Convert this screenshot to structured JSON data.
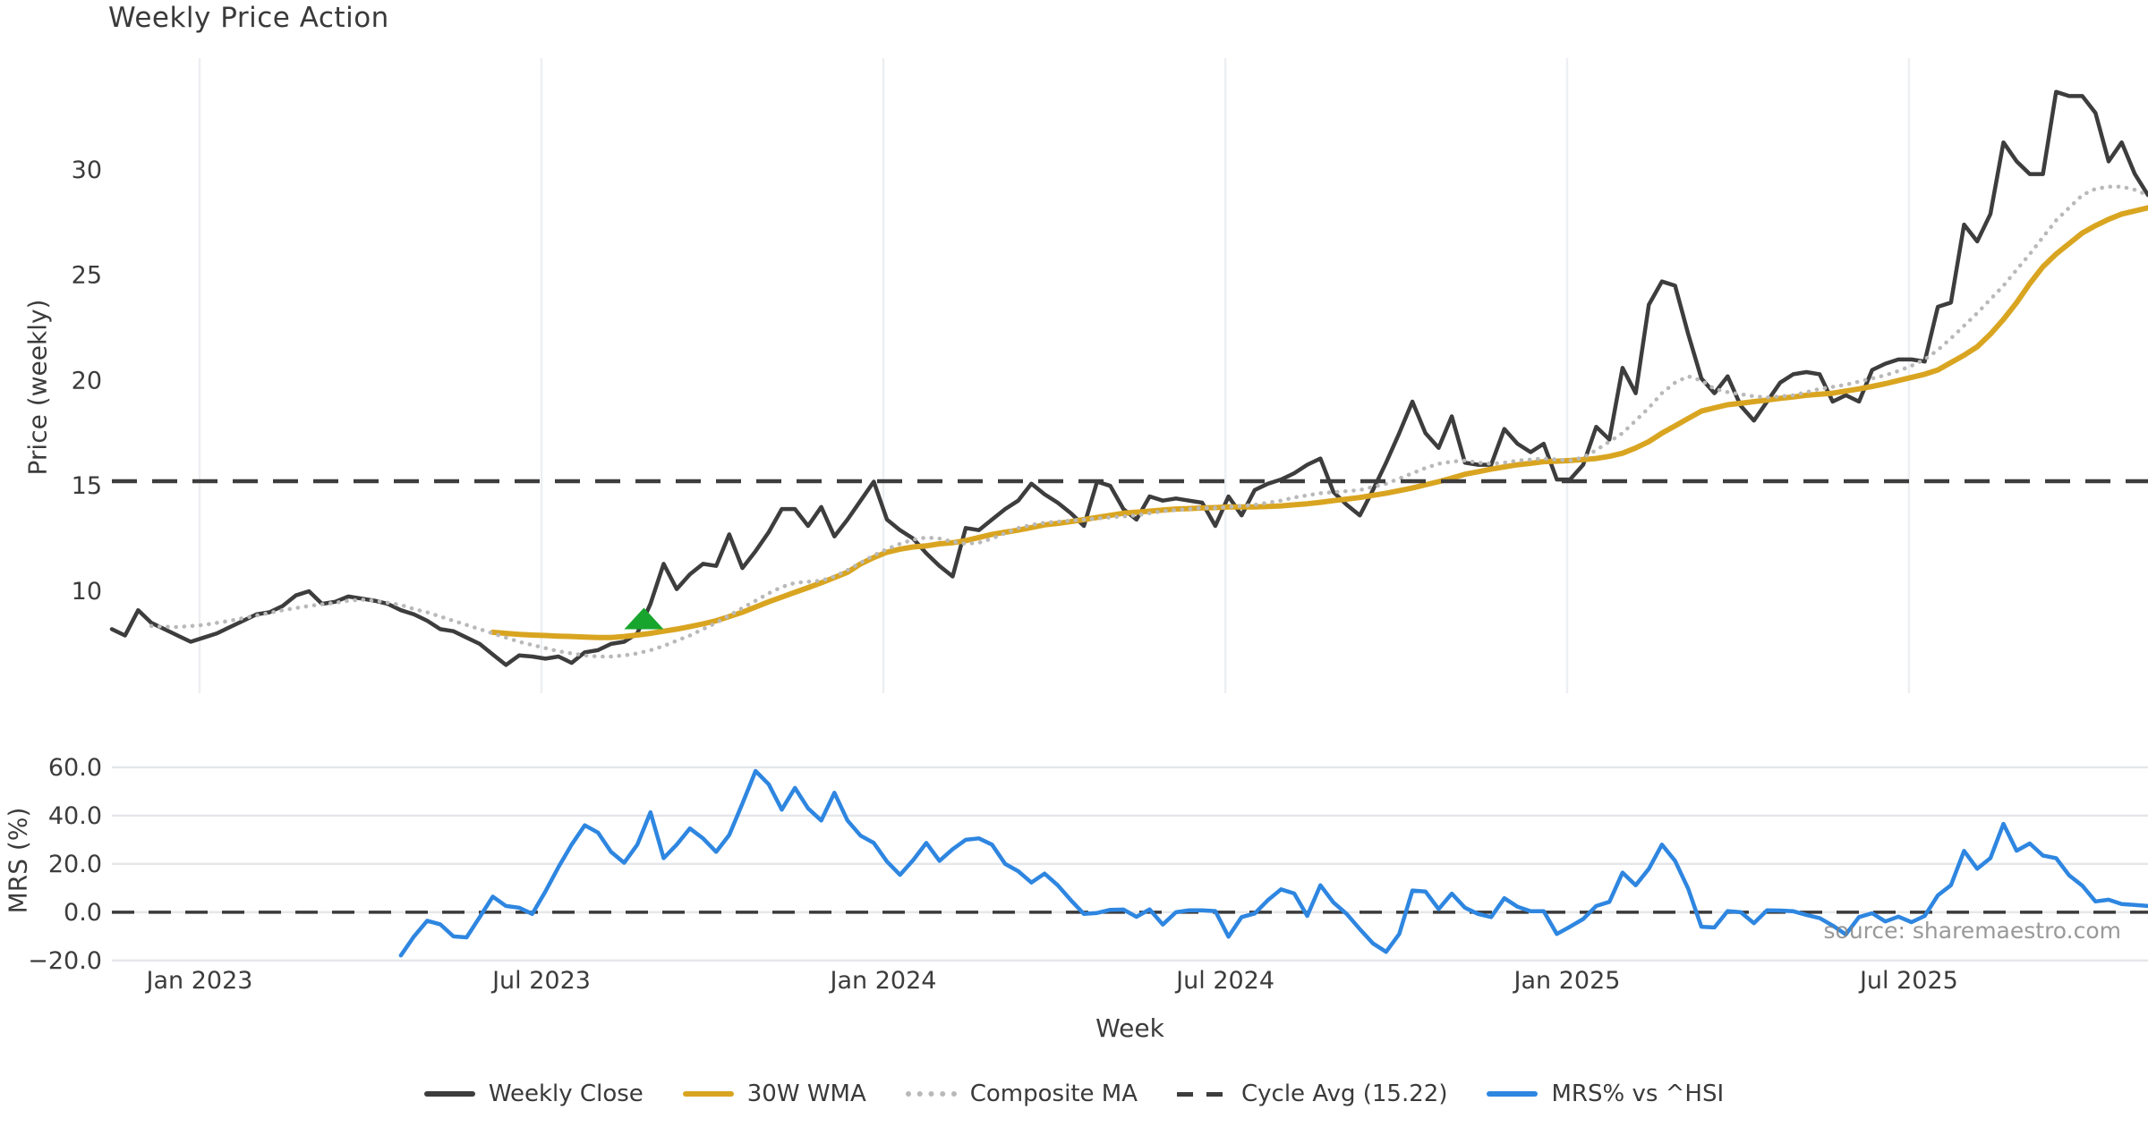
{
  "title": "Weekly Price Action",
  "source_note": "source: sharemaestro.com",
  "chart_data": {
    "type": "line",
    "title": "Weekly Price Action",
    "x_axis": {
      "label": "Week",
      "weeks_total": 155,
      "ticks": [
        {
          "label": "Jan 2023",
          "week": 6.68
        },
        {
          "label": "Jul 2023",
          "week": 32.7
        },
        {
          "label": "Jan 2024",
          "week": 58.73
        },
        {
          "label": "Jul 2024",
          "week": 84.76
        },
        {
          "label": "Jan 2025",
          "week": 110.78
        },
        {
          "label": "Jul 2025",
          "week": 136.8
        }
      ]
    },
    "price_panel": {
      "ylabel": "Price (weekly)",
      "yticks": [
        10,
        15,
        20,
        25,
        30
      ],
      "ylim": [
        5.16,
        35.3
      ],
      "grid": "vertical"
    },
    "mrs_panel": {
      "ylabel": "MRS (%)",
      "yticks": [
        -20,
        0,
        20,
        40,
        60
      ],
      "ytick_labels": [
        "−20.0",
        "0.0",
        "20.0",
        "40.0",
        "60.0"
      ],
      "ylim": [
        -23,
        65.9
      ],
      "zero_line": 0,
      "grid": "horizontal"
    },
    "cycle_avg": 15.22,
    "buy_marker": {
      "week": 40.5,
      "price": 8.62,
      "color": "#18a52d",
      "shape": "triangle-up"
    },
    "series": [
      {
        "id": "weekly_close",
        "name": "Weekly Close",
        "color": "#3d3d3d",
        "style": "solid",
        "panel": "price",
        "start_week": 0,
        "values": [
          8.2,
          7.9,
          9.1,
          8.5,
          8.2,
          7.9,
          7.6,
          7.8,
          8.0,
          8.3,
          8.6,
          8.9,
          9.0,
          9.3,
          9.8,
          10.0,
          9.4,
          9.5,
          9.75,
          9.65,
          9.55,
          9.4,
          9.1,
          8.9,
          8.6,
          8.2,
          8.1,
          7.8,
          7.5,
          7.0,
          6.5,
          6.95,
          6.9,
          6.8,
          6.9,
          6.6,
          7.1,
          7.2,
          7.5,
          7.6,
          8.0,
          9.4,
          11.3,
          10.1,
          10.8,
          11.3,
          11.2,
          12.7,
          11.1,
          11.9,
          12.8,
          13.9,
          13.9,
          13.1,
          14.0,
          12.6,
          13.4,
          14.3,
          15.2,
          13.4,
          12.9,
          12.5,
          11.8,
          11.2,
          10.7,
          13.0,
          12.9,
          13.4,
          13.9,
          14.3,
          15.1,
          14.6,
          14.2,
          13.7,
          13.1,
          15.2,
          15.0,
          13.9,
          13.4,
          14.5,
          14.3,
          14.4,
          14.3,
          14.2,
          13.1,
          14.5,
          13.6,
          14.8,
          15.1,
          15.3,
          15.6,
          16.0,
          16.3,
          14.7,
          14.1,
          13.6,
          14.8,
          16.1,
          17.5,
          19.0,
          17.5,
          16.8,
          18.3,
          16.1,
          16.0,
          16.0,
          17.7,
          17.0,
          16.6,
          17.0,
          15.3,
          15.3,
          16.0,
          17.8,
          17.2,
          20.6,
          19.4,
          23.6,
          24.7,
          24.5,
          22.2,
          20.1,
          19.4,
          20.2,
          18.8,
          18.1,
          19.0,
          19.9,
          20.3,
          20.4,
          20.3,
          19.0,
          19.3,
          19.0,
          20.5,
          20.8,
          21.0,
          21.0,
          20.9,
          23.5,
          23.7,
          27.4,
          26.6,
          27.9,
          31.3,
          30.4,
          29.8,
          29.8,
          33.7,
          33.5,
          33.5,
          32.7,
          30.4,
          31.3,
          29.8,
          28.8
        ]
      },
      {
        "id": "wma30",
        "name": "30W WMA",
        "color": "#d9a521",
        "style": "solid",
        "panel": "price",
        "start_week": 29,
        "values": [
          8.05,
          8.0,
          7.95,
          7.92,
          7.9,
          7.87,
          7.85,
          7.82,
          7.8,
          7.8,
          7.85,
          7.92,
          8.0,
          8.1,
          8.2,
          8.32,
          8.45,
          8.6,
          8.8,
          9.0,
          9.25,
          9.5,
          9.72,
          9.95,
          10.17,
          10.4,
          10.65,
          10.9,
          11.3,
          11.6,
          11.85,
          12.0,
          12.1,
          12.15,
          12.25,
          12.3,
          12.4,
          12.55,
          12.7,
          12.8,
          12.9,
          13.02,
          13.15,
          13.22,
          13.3,
          13.4,
          13.5,
          13.6,
          13.7,
          13.75,
          13.8,
          13.85,
          13.9,
          13.92,
          13.95,
          13.97,
          14.0,
          14.0,
          14.0,
          14.02,
          14.05,
          14.1,
          14.15,
          14.22,
          14.3,
          14.37,
          14.45,
          14.55,
          14.65,
          14.77,
          14.9,
          15.05,
          15.2,
          15.37,
          15.55,
          15.67,
          15.8,
          15.9,
          16.0,
          16.07,
          16.15,
          16.17,
          16.2,
          16.25,
          16.3,
          16.4,
          16.55,
          16.8,
          17.1,
          17.5,
          17.85,
          18.2,
          18.55,
          18.7,
          18.85,
          18.92,
          19.0,
          19.07,
          19.15,
          19.22,
          19.3,
          19.35,
          19.4,
          19.5,
          19.6,
          19.72,
          19.85,
          20.0,
          20.15,
          20.3,
          20.5,
          20.85,
          21.2,
          21.6,
          22.2,
          22.9,
          23.7,
          24.6,
          25.4,
          26.0,
          26.5,
          27.0,
          27.35,
          27.65,
          27.9,
          28.05,
          28.2
        ]
      },
      {
        "id": "composite",
        "name": "Composite MA",
        "color": "#b9b9b9",
        "style": "dotted",
        "panel": "price",
        "start_week": 3,
        "values": [
          8.35,
          8.32,
          8.3,
          8.35,
          8.4,
          8.5,
          8.6,
          8.72,
          8.85,
          8.97,
          9.1,
          9.2,
          9.3,
          9.38,
          9.45,
          9.55,
          9.6,
          9.55,
          9.45,
          9.35,
          9.15,
          9.0,
          8.8,
          8.6,
          8.4,
          8.2,
          8.0,
          7.8,
          7.6,
          7.45,
          7.3,
          7.15,
          7.05,
          6.95,
          6.9,
          6.9,
          6.95,
          7.05,
          7.2,
          7.4,
          7.65,
          7.9,
          8.2,
          8.5,
          8.85,
          9.2,
          9.55,
          9.9,
          10.2,
          10.4,
          10.45,
          10.5,
          10.7,
          11.0,
          11.35,
          11.7,
          12.0,
          12.25,
          12.45,
          12.55,
          12.5,
          12.35,
          12.25,
          12.3,
          12.5,
          12.75,
          13.0,
          13.15,
          13.25,
          13.3,
          13.35,
          13.4,
          13.45,
          13.5,
          13.55,
          13.6,
          13.7,
          13.8,
          13.85,
          13.9,
          13.95,
          13.95,
          14.0,
          14.05,
          14.1,
          14.2,
          14.3,
          14.45,
          14.55,
          14.65,
          14.7,
          14.75,
          14.8,
          14.95,
          15.1,
          15.35,
          15.6,
          15.85,
          16.05,
          16.15,
          16.2,
          16.1,
          16.05,
          16.1,
          16.2,
          16.25,
          16.3,
          16.25,
          16.2,
          16.35,
          16.7,
          17.1,
          17.5,
          18.1,
          18.7,
          19.4,
          19.9,
          20.2,
          20.0,
          19.6,
          19.45,
          19.35,
          19.25,
          19.2,
          19.25,
          19.3,
          19.45,
          19.6,
          19.7,
          19.8,
          19.95,
          20.1,
          20.25,
          20.45,
          20.7,
          21.0,
          21.45,
          22.0,
          22.6,
          23.2,
          23.85,
          24.5,
          25.25,
          26.0,
          26.8,
          27.6,
          28.2,
          28.8,
          29.1,
          29.2,
          29.2,
          29.05,
          28.8
        ]
      },
      {
        "id": "cycle_avg",
        "name": "Cycle Avg (15.22)",
        "color": "#3d3d3d",
        "style": "dashed",
        "panel": "price",
        "const_value": 15.22
      },
      {
        "id": "mrs",
        "name": "MRS% vs ^HSI",
        "color": "#2e86e0",
        "style": "solid",
        "panel": "mrs",
        "start_week": 22,
        "values": [
          -17.9,
          -10,
          -3.5,
          -5,
          -10,
          -10.4,
          -2,
          6.5,
          2.6,
          1.9,
          -0.7,
          8.6,
          18.7,
          28,
          36,
          33,
          25,
          20.5,
          28,
          41.4,
          22.4,
          28,
          34.7,
          30.6,
          25,
          32,
          45,
          58.5,
          53,
          42.5,
          51.5,
          43,
          38,
          49.5,
          38,
          31.7,
          28.7,
          21,
          15.5,
          21.6,
          28.7,
          21.3,
          26.1,
          30,
          30.6,
          28,
          20,
          17,
          12.3,
          16,
          11.2,
          5,
          -0.7,
          -0.3,
          1,
          1.1,
          -1.9,
          1.2,
          -5.1,
          0,
          0.8,
          0.8,
          0.5,
          -10.1,
          -2,
          -0.5,
          5,
          9.5,
          7.8,
          -1.5,
          11.2,
          4,
          -0.7,
          -7,
          -12.9,
          -16.4,
          -9,
          9,
          8.6,
          1.3,
          7.7,
          1.9,
          -0.7,
          -2,
          5.8,
          2.3,
          0.4,
          0.4,
          -9,
          -6,
          -2.8,
          2.6,
          4.3,
          16.4,
          11.2,
          18,
          28,
          21.3,
          9.7,
          -6,
          -6.3,
          0.5,
          0,
          -4.5,
          0.8,
          0.7,
          0.4,
          -1.1,
          -2.4,
          -5.5,
          -9.2,
          -2,
          -0.4,
          -3.8,
          -1.8,
          -4.1,
          -1.5,
          7,
          11.2,
          25.4,
          18,
          22.4,
          36.6,
          25.5,
          28.5,
          23.5,
          22.4,
          15.3,
          11,
          4.5,
          5.2,
          3.4,
          3,
          2.6
        ]
      }
    ]
  }
}
